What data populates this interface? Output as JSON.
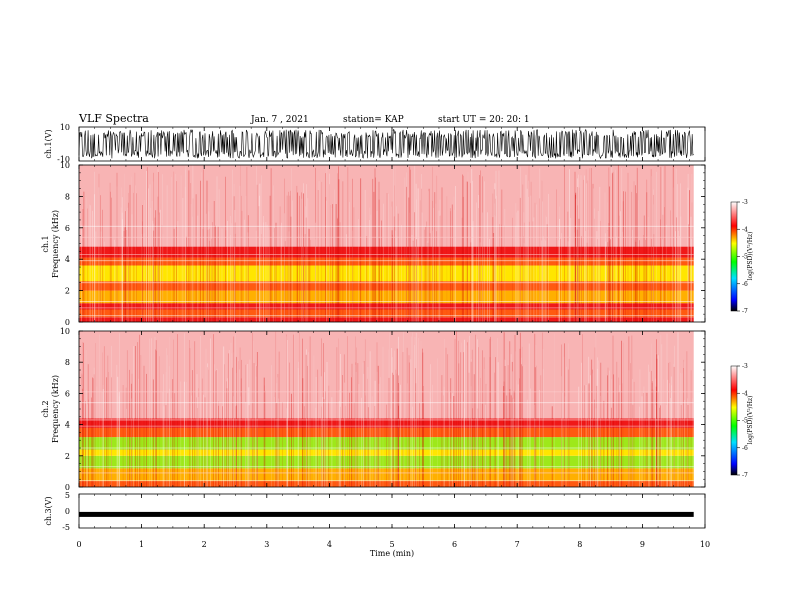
{
  "header": {
    "title": "VLF Spectra",
    "date": "Jan. 7 , 2021",
    "station": "station= KAP",
    "start": "start UT =  20: 20: 1"
  },
  "chart_data": [
    {
      "type": "line",
      "panel": "ch1-waveform",
      "ylabel": "ch.1(V)",
      "ylim": [
        -10,
        10
      ],
      "yticks": [
        "10",
        "-10"
      ],
      "x_range_min": [
        0,
        9.82
      ],
      "color": "#000000"
    },
    {
      "type": "heatmap",
      "panel": "ch1-spectrogram",
      "ylabel": "ch.1\nFrequency (kHz)",
      "ylim": [
        0,
        10
      ],
      "yticks": [
        "0",
        "2",
        "4",
        "6",
        "8",
        "10"
      ],
      "x_range_min": [
        0,
        9.82
      ],
      "frequency_bands_khz": [
        {
          "from": 0.0,
          "to": 0.3,
          "level": "red"
        },
        {
          "from": 0.3,
          "to": 0.8,
          "level": "orange"
        },
        {
          "from": 0.8,
          "to": 1.2,
          "level": "red"
        },
        {
          "from": 1.2,
          "to": 2.0,
          "level": "yellow-orange"
        },
        {
          "from": 2.0,
          "to": 2.6,
          "level": "orange"
        },
        {
          "from": 2.6,
          "to": 3.6,
          "level": "yellow"
        },
        {
          "from": 3.6,
          "to": 4.1,
          "level": "orange"
        },
        {
          "from": 4.1,
          "to": 4.8,
          "level": "red"
        },
        {
          "from": 4.8,
          "to": 10.0,
          "level": "light-red"
        }
      ],
      "colorbar": {
        "label": "log(PSD)(V²/Hz)",
        "range": [
          -7,
          -3
        ],
        "ticks": [
          "-3",
          "-4",
          "-5",
          "-6",
          "-7"
        ]
      }
    },
    {
      "type": "heatmap",
      "panel": "ch2-spectrogram",
      "ylabel": "ch.2\nFrequency (kHz)",
      "ylim": [
        0,
        10
      ],
      "yticks": [
        "0",
        "2",
        "4",
        "6",
        "8",
        "10"
      ],
      "x_range_min": [
        0,
        9.82
      ],
      "frequency_bands_khz": [
        {
          "from": 0.0,
          "to": 0.4,
          "level": "orange"
        },
        {
          "from": 0.4,
          "to": 1.2,
          "level": "yellow-orange"
        },
        {
          "from": 1.2,
          "to": 2.0,
          "level": "green-yellow"
        },
        {
          "from": 2.0,
          "to": 2.4,
          "level": "yellow"
        },
        {
          "from": 2.4,
          "to": 3.2,
          "level": "green-yellow"
        },
        {
          "from": 3.2,
          "to": 3.8,
          "level": "orange"
        },
        {
          "from": 3.8,
          "to": 4.4,
          "level": "red"
        },
        {
          "from": 4.4,
          "to": 10.0,
          "level": "light-red"
        }
      ],
      "colorbar": {
        "label": "log(PSD)(V²/Hz)",
        "range": [
          -7,
          -3
        ],
        "ticks": [
          "-3",
          "-4",
          "-5",
          "-6",
          "-7"
        ]
      }
    },
    {
      "type": "line",
      "panel": "ch3-waveform",
      "ylabel": "ch.3(V)",
      "ylim": [
        -5,
        5
      ],
      "yticks": [
        "5",
        "0",
        "-5"
      ],
      "level": -1,
      "x_range_min": [
        0,
        9.82
      ],
      "color": "#000000"
    }
  ],
  "xaxis": {
    "label": "Time (min)",
    "ticks": [
      "0",
      "1",
      "2",
      "3",
      "4",
      "5",
      "6",
      "7",
      "8",
      "9",
      "10"
    ],
    "xlim": [
      0,
      10
    ]
  }
}
